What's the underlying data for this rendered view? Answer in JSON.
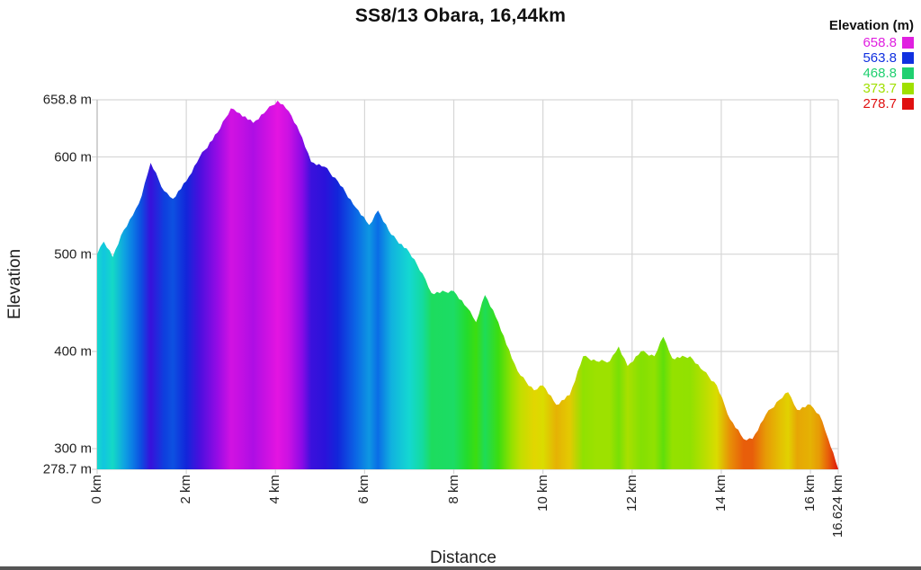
{
  "chart_data": {
    "type": "area",
    "title": "SS8/13 Obara, 16,44km",
    "xlabel": "Distance",
    "ylabel": "Elevation",
    "xlim": [
      0,
      16.624
    ],
    "ylim": [
      278.7,
      658.8
    ],
    "x_ticks": [
      "0 km",
      "2 km",
      "4 km",
      "6 km",
      "8 km",
      "10 km",
      "12 km",
      "14 km",
      "16 km",
      "16.624 km"
    ],
    "y_ticks": [
      "658.8 m",
      "600 m",
      "500 m",
      "400 m",
      "300 m",
      "278.7 m"
    ],
    "grid": true,
    "legend": {
      "title": "Elevation (m)",
      "position": "top-right",
      "entries": [
        {
          "label": "658.8",
          "color": "#e020e0"
        },
        {
          "label": "563.8",
          "color": "#1030e0"
        },
        {
          "label": "468.8",
          "color": "#20d070"
        },
        {
          "label": "373.7",
          "color": "#a0e000"
        },
        {
          "label": "278.7",
          "color": "#e01010"
        }
      ]
    },
    "x": [
      0.0,
      0.15,
      0.35,
      0.6,
      0.8,
      1.0,
      1.2,
      1.5,
      1.7,
      2.0,
      2.3,
      2.7,
      3.0,
      3.2,
      3.5,
      3.8,
      4.05,
      4.3,
      4.6,
      4.8,
      5.1,
      5.4,
      5.8,
      6.1,
      6.3,
      6.6,
      7.0,
      7.3,
      7.5,
      8.0,
      8.3,
      8.5,
      8.7,
      9.0,
      9.3,
      9.5,
      9.8,
      10.0,
      10.3,
      10.6,
      10.9,
      11.2,
      11.5,
      11.7,
      11.9,
      12.2,
      12.5,
      12.7,
      12.9,
      13.3,
      13.6,
      13.9,
      14.2,
      14.5,
      14.7,
      15.0,
      15.3,
      15.5,
      15.7,
      16.0,
      16.2,
      16.4,
      16.624
    ],
    "values": [
      500,
      513,
      497,
      525,
      540,
      560,
      594,
      565,
      557,
      575,
      600,
      625,
      650,
      645,
      635,
      648,
      658,
      647,
      620,
      595,
      590,
      575,
      548,
      530,
      545,
      520,
      502,
      480,
      460,
      462,
      445,
      430,
      458,
      430,
      393,
      375,
      360,
      365,
      345,
      355,
      395,
      390,
      390,
      405,
      385,
      400,
      395,
      415,
      393,
      395,
      380,
      365,
      330,
      310,
      310,
      335,
      350,
      358,
      340,
      345,
      335,
      310,
      279
    ]
  }
}
